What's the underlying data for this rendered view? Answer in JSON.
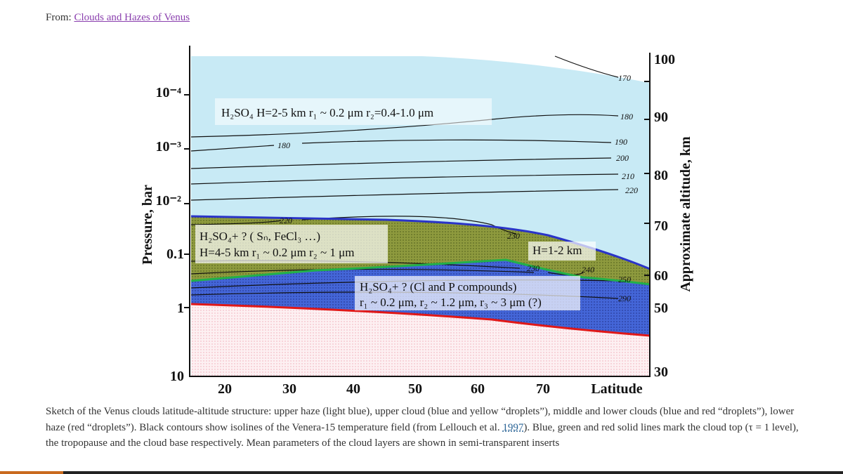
{
  "header": {
    "prefix": "From:",
    "link": "Clouds and Hazes of Venus"
  },
  "figure": {
    "left_axis": {
      "label": "Pressure, bar",
      "ticks": [
        "10⁻⁴",
        "10⁻³",
        "10⁻²",
        "0.1",
        "1",
        "10"
      ]
    },
    "right_axis": {
      "label": "Approximate altitude, km",
      "ticks": [
        "100",
        "90",
        "80",
        "70",
        "60",
        "50",
        "30"
      ]
    },
    "x_axis": {
      "label": "Latitude",
      "ticks": [
        "20",
        "30",
        "40",
        "50",
        "60",
        "70"
      ]
    },
    "contour_labels": [
      "170",
      "180",
      "180",
      "190",
      "200",
      "210",
      "220",
      "220",
      "230",
      "230",
      "240",
      "250",
      "290"
    ],
    "annotations": {
      "upper_haze": "H₂SO₄  H=2-5 km  r₁ ~ 0.2 μm  r₂=0.4-1.0 μm",
      "upper_cloud_1": "H₂SO₄+ ? ( Sₙ, FeCl₃ …)",
      "upper_cloud_2": "H=4-5 km  r₁ ~ 0.2 μm  r₂ ~ 1 μm",
      "tropopause": "H=1-2 km",
      "lower_cloud_1": "H₂SO₄+ ? (Cl and P compounds)",
      "lower_cloud_2": "r₁ ~ 0.2 μm, r₂ ~ 1.2 μm, r₃ ~ 3 μm (?)"
    }
  },
  "caption": {
    "text_before": "Sketch of the Venus clouds latitude-altitude structure: upper haze (light blue), upper cloud (blue and yellow “droplets”), middle and lower clouds (blue and red “droplets”), lower haze (red “droplets”). Black contours show isolines of the Venera-15 temperature field (from Lellouch et al.",
    "link": "1997",
    "text_after": "). Blue, green and red solid lines mark the cloud top (τ = 1 level), the tropopause and the cloud base respectively. Mean parameters of the cloud layers are shown in semi-transparent inserts"
  }
}
